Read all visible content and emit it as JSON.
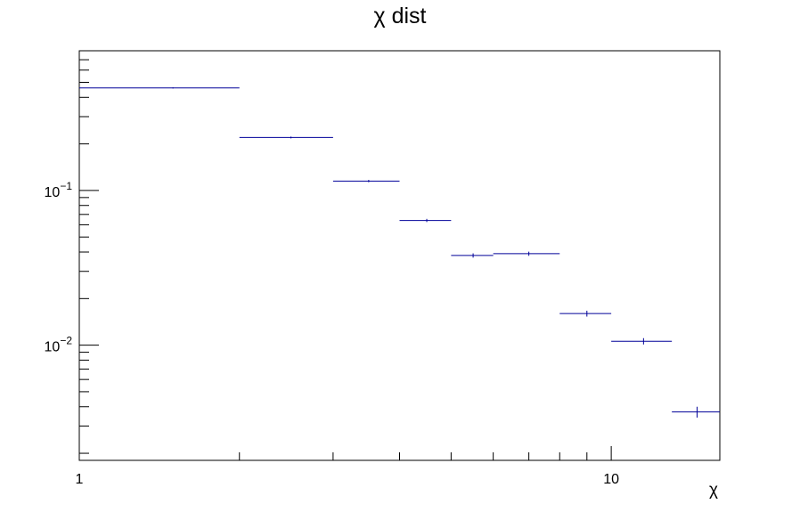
{
  "chart_data": {
    "type": "scatter",
    "title": "χ dist",
    "xlabel": "χ",
    "ylabel": "",
    "x_scale": "log",
    "y_scale": "log",
    "xlim": [
      1,
      16
    ],
    "ylim": [
      0.0018,
      0.8
    ],
    "grid": false,
    "legend": "none",
    "x_tick_labels": [
      {
        "value": 1,
        "label": "1"
      },
      {
        "value": 10,
        "label": "10"
      }
    ],
    "y_tick_labels": [
      {
        "value": 0.1,
        "base": "10",
        "exp": "−1"
      },
      {
        "value": 0.01,
        "base": "10",
        "exp": "−2"
      }
    ],
    "series": [
      {
        "color": "#000099",
        "points": [
          {
            "x_low": 1,
            "x_high": 2,
            "x": 1.5,
            "y": 0.46,
            "err": 0.004
          },
          {
            "x_low": 2,
            "x_high": 3,
            "x": 2.5,
            "y": 0.22,
            "err": 0.003
          },
          {
            "x_low": 3,
            "x_high": 4,
            "x": 3.5,
            "y": 0.115,
            "err": 0.002
          },
          {
            "x_low": 4,
            "x_high": 5,
            "x": 4.5,
            "y": 0.064,
            "err": 0.0015
          },
          {
            "x_low": 5,
            "x_high": 6,
            "x": 5.5,
            "y": 0.038,
            "err": 0.0012
          },
          {
            "x_low": 6,
            "x_high": 8,
            "x": 7,
            "y": 0.039,
            "err": 0.0012
          },
          {
            "x_low": 8,
            "x_high": 10,
            "x": 9,
            "y": 0.016,
            "err": 0.0007
          },
          {
            "x_low": 10,
            "x_high": 13,
            "x": 11.5,
            "y": 0.0106,
            "err": 0.0005
          },
          {
            "x_low": 13,
            "x_high": 16,
            "x": 14.5,
            "y": 0.0037,
            "err": 0.0003
          }
        ]
      }
    ]
  }
}
